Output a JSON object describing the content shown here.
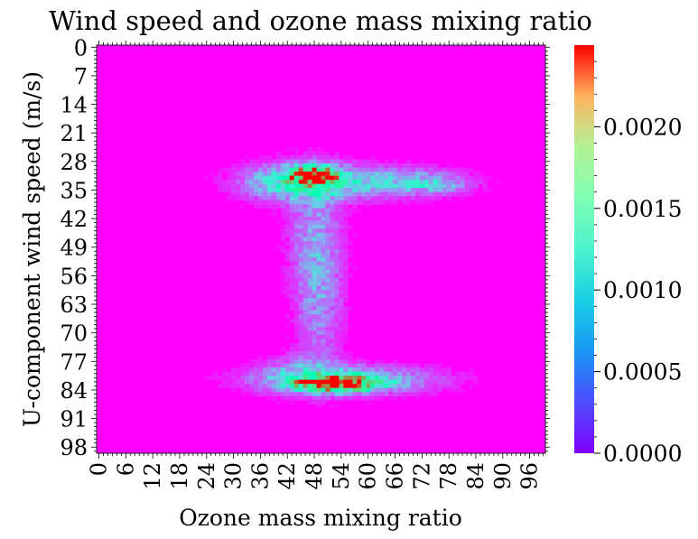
{
  "chart_data": {
    "type": "heatmap",
    "title": "Wind speed and ozone mass mixing ratio",
    "xlabel": "Ozone mass mixing ratio",
    "ylabel": "U-component wind speed (m/s)",
    "grid_size": 100,
    "x_ticks": [
      "0",
      "6",
      "12",
      "18",
      "24",
      "30",
      "36",
      "42",
      "48",
      "54",
      "60",
      "66",
      "72",
      "78",
      "84",
      "90",
      "96"
    ],
    "y_ticks": [
      "0",
      "7",
      "14",
      "21",
      "28",
      "35",
      "42",
      "49",
      "56",
      "63",
      "70",
      "77",
      "84",
      "91",
      "98"
    ],
    "colormap": "rainbow",
    "colorbar": {
      "min": 0.0,
      "max": 0.0025,
      "ticks": [
        "0.0000",
        "0.0005",
        "0.0010",
        "0.0015",
        "0.0020"
      ],
      "tick_values": [
        0.0,
        0.0005,
        0.001,
        0.0015,
        0.002
      ]
    },
    "density_regions": [
      {
        "name": "upper cluster",
        "x_center": 48,
        "y_center": 32,
        "peak": 0.0025
      },
      {
        "name": "upper right tail",
        "x_center": 68,
        "y_center": 34,
        "peak": 0.0008
      },
      {
        "name": "vertical band",
        "x_center": 49,
        "y_center": 58,
        "peak": 0.0007
      },
      {
        "name": "lower cluster",
        "x_center": 55,
        "y_center": 82,
        "peak": 0.0022
      }
    ]
  }
}
